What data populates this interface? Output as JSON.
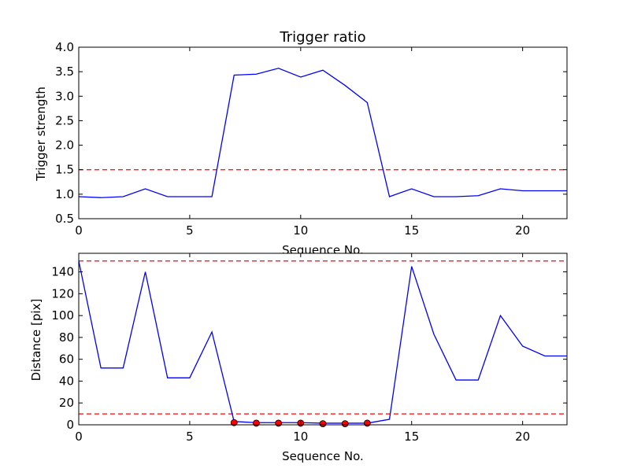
{
  "chart_data": [
    {
      "type": "line",
      "title": "Trigger ratio",
      "xlabel": "Sequence No.",
      "ylabel": "Trigger strength",
      "xlim": [
        0,
        22
      ],
      "ylim": [
        0.5,
        4.0
      ],
      "xticks": [
        "0",
        "5",
        "10",
        "15",
        "20"
      ],
      "yticks": [
        "0.5",
        "1.0",
        "1.5",
        "2.0",
        "2.5",
        "3.0",
        "3.5",
        "4.0"
      ],
      "grid": false,
      "x": [
        0,
        1,
        2,
        3,
        4,
        5,
        6,
        7,
        8,
        9,
        10,
        11,
        12,
        13,
        14,
        15,
        16,
        17,
        18,
        19,
        20,
        21,
        22
      ],
      "series": [
        {
          "color": "#0000ff",
          "style": "solid",
          "values": [
            0.95,
            0.93,
            0.95,
            1.11,
            0.95,
            0.95,
            0.95,
            3.43,
            3.45,
            3.57,
            3.39,
            3.53,
            3.22,
            2.87,
            0.95,
            1.11,
            0.95,
            0.95,
            0.97,
            1.11,
            1.07,
            1.07,
            1.07
          ]
        }
      ],
      "hlines": [
        {
          "y": 1.5,
          "color": "#ff0000",
          "style": "dashed"
        }
      ]
    },
    {
      "type": "line",
      "title": "",
      "xlabel": "Sequence No.",
      "ylabel": "Distance [pix]",
      "xlim": [
        0,
        22
      ],
      "ylim": [
        0,
        157
      ],
      "xticks": [
        "0",
        "5",
        "10",
        "15",
        "20"
      ],
      "yticks": [
        "0",
        "20",
        "40",
        "60",
        "80",
        "100",
        "120",
        "140"
      ],
      "grid": false,
      "x": [
        0,
        1,
        2,
        3,
        4,
        5,
        6,
        7,
        8,
        9,
        10,
        11,
        12,
        13,
        14,
        15,
        16,
        17,
        18,
        19,
        20,
        21,
        22
      ],
      "series": [
        {
          "color": "#0000ff",
          "style": "solid",
          "values": [
            150,
            52,
            52,
            140,
            43,
            43,
            85,
            3,
            2,
            2,
            2,
            1.5,
            1.5,
            1.5,
            5,
            145,
            83,
            41,
            41,
            100,
            72,
            63,
            63
          ]
        }
      ],
      "markers": {
        "color": "#ff0000",
        "x": [
          7,
          8,
          9,
          10,
          11,
          12,
          13
        ],
        "y": [
          2,
          1.5,
          1.5,
          1.5,
          1,
          1,
          1.5
        ]
      },
      "hlines": [
        {
          "y": 150,
          "color": "#ff0000",
          "style": "dashed"
        },
        {
          "y": 10,
          "color": "#ff0000",
          "style": "dashed"
        }
      ]
    }
  ]
}
